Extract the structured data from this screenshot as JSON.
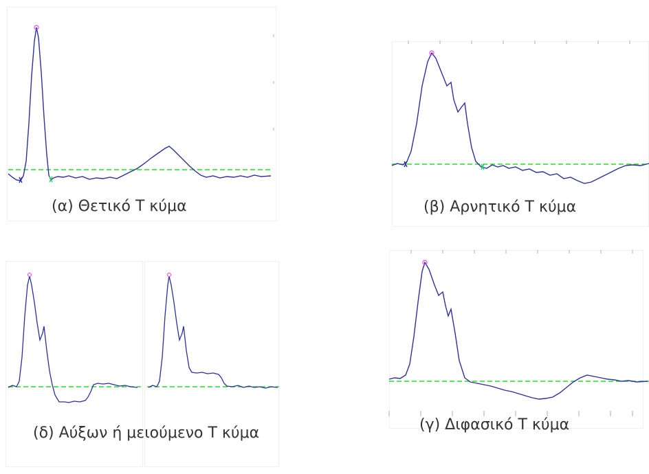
{
  "colors": {
    "trace": "#2b2fa0",
    "trace_light": "#8a8fd6",
    "baseline": "#22dd22",
    "peak_marker": "#ee44ee",
    "onset_marker": "#22cc66",
    "caption_text": "#333333"
  },
  "panels": {
    "a": {
      "caption": "(α) Θετικό Τ κύμα"
    },
    "b": {
      "caption": "(β) Αρνητικό Τ κύμα"
    },
    "g": {
      "caption": "(γ) Διφασικό Τ κύμα"
    },
    "d": {
      "caption": "(δ) Αύξων ή μειούμενο Τ κύμα"
    }
  }
}
